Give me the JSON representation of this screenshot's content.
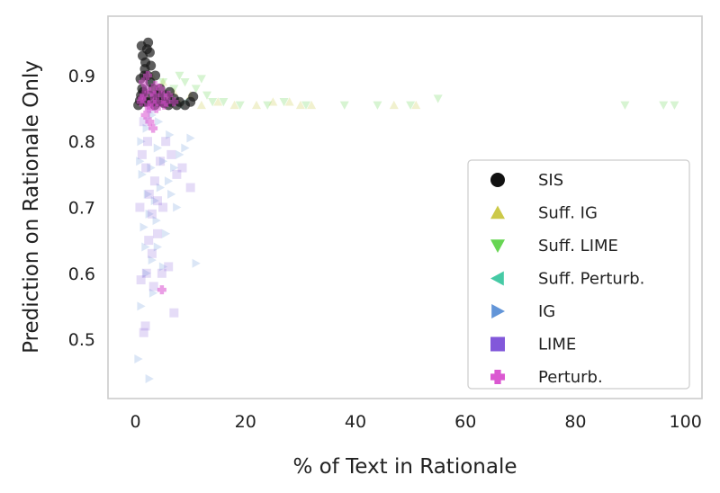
{
  "chart_data": {
    "type": "scatter",
    "xlabel": "% of Text in Rationale",
    "ylabel": "Prediction on Rationale Only",
    "xlim": [
      -5,
      103
    ],
    "ylim": [
      0.41,
      0.99
    ],
    "x_ticks": [
      0,
      20,
      40,
      60,
      80,
      100
    ],
    "y_ticks": [
      0.5,
      0.6,
      0.7,
      0.8,
      0.9
    ],
    "x_tick_labels": [
      "0",
      "20",
      "40",
      "60",
      "80",
      "100"
    ],
    "y_tick_labels": [
      "0.5",
      "0.6",
      "0.7",
      "0.8",
      "0.9"
    ],
    "grid": false,
    "legend_position": "lower-right",
    "series": [
      {
        "name": "SIS",
        "marker": "circle",
        "color": "#1a1a1a",
        "opacity": 0.7,
        "points": [
          [
            0.5,
            0.855
          ],
          [
            0.8,
            0.862
          ],
          [
            1.0,
            0.87
          ],
          [
            1.2,
            0.88
          ],
          [
            1.5,
            0.86
          ],
          [
            1.6,
            0.9
          ],
          [
            1.8,
            0.92
          ],
          [
            2.0,
            0.86
          ],
          [
            2.1,
            0.94
          ],
          [
            2.3,
            0.95
          ],
          [
            2.5,
            0.87
          ],
          [
            2.7,
            0.89
          ],
          [
            3.0,
            0.86
          ],
          [
            3.2,
            0.88
          ],
          [
            3.5,
            0.855
          ],
          [
            3.8,
            0.87
          ],
          [
            4.0,
            0.86
          ],
          [
            4.5,
            0.88
          ],
          [
            5.0,
            0.86
          ],
          [
            5.5,
            0.87
          ],
          [
            6.0,
            0.855
          ],
          [
            6.5,
            0.86
          ],
          [
            7.0,
            0.865
          ],
          [
            7.5,
            0.855
          ],
          [
            8.0,
            0.86
          ],
          [
            9.0,
            0.855
          ],
          [
            10.0,
            0.86
          ],
          [
            10.5,
            0.868
          ],
          [
            1.3,
            0.93
          ],
          [
            1.7,
            0.91
          ],
          [
            2.2,
            0.9
          ],
          [
            2.8,
            0.915
          ],
          [
            0.9,
            0.895
          ],
          [
            1.4,
            0.875
          ],
          [
            3.6,
            0.9
          ],
          [
            4.2,
            0.87
          ],
          [
            5.2,
            0.858
          ],
          [
            6.2,
            0.875
          ],
          [
            2.6,
            0.935
          ],
          [
            1.1,
            0.945
          ]
        ]
      },
      {
        "name": "Suff. IG",
        "marker": "triangle-up",
        "color": "#c9c63e",
        "opacity": 0.25,
        "points": [
          [
            2.0,
            0.87
          ],
          [
            4.0,
            0.88
          ],
          [
            6.0,
            0.87
          ],
          [
            8.0,
            0.86
          ],
          [
            10.0,
            0.87
          ],
          [
            12.0,
            0.855
          ],
          [
            15.0,
            0.86
          ],
          [
            18.0,
            0.855
          ],
          [
            22.0,
            0.855
          ],
          [
            25.0,
            0.86
          ],
          [
            28.0,
            0.86
          ],
          [
            30.0,
            0.855
          ],
          [
            32.0,
            0.855
          ],
          [
            47.0,
            0.855
          ],
          [
            51.0,
            0.855
          ],
          [
            3.0,
            0.9
          ],
          [
            5.0,
            0.89
          ],
          [
            7.0,
            0.875
          ]
        ]
      },
      {
        "name": "Suff. LIME",
        "marker": "triangle-down",
        "color": "#5fd34a",
        "opacity": 0.25,
        "points": [
          [
            3.0,
            0.88
          ],
          [
            5.0,
            0.89
          ],
          [
            7.0,
            0.88
          ],
          [
            9.0,
            0.89
          ],
          [
            11.0,
            0.88
          ],
          [
            13.0,
            0.87
          ],
          [
            14.0,
            0.86
          ],
          [
            16.0,
            0.86
          ],
          [
            19.0,
            0.855
          ],
          [
            24.0,
            0.855
          ],
          [
            27.0,
            0.86
          ],
          [
            31.0,
            0.855
          ],
          [
            38.0,
            0.855
          ],
          [
            44.0,
            0.855
          ],
          [
            50.0,
            0.855
          ],
          [
            55.0,
            0.865
          ],
          [
            89.0,
            0.855
          ],
          [
            96.0,
            0.855
          ],
          [
            98.0,
            0.855
          ],
          [
            12.0,
            0.895
          ],
          [
            8.0,
            0.9
          ]
        ]
      },
      {
        "name": "Suff. Perturb.",
        "marker": "triangle-left",
        "color": "#3cc7a0",
        "opacity": 0.25,
        "points": [
          [
            2.0,
            0.86
          ],
          [
            3.0,
            0.87
          ],
          [
            4.0,
            0.86
          ],
          [
            5.0,
            0.87
          ],
          [
            6.0,
            0.86
          ],
          [
            7.0,
            0.86
          ],
          [
            8.0,
            0.855
          ],
          [
            9.0,
            0.86
          ],
          [
            1.5,
            0.88
          ],
          [
            2.5,
            0.89
          ]
        ]
      },
      {
        "name": "IG",
        "marker": "triangle-right",
        "color": "#5a8fd6",
        "opacity": 0.22,
        "points": [
          [
            0.5,
            0.47
          ],
          [
            2.5,
            0.44
          ],
          [
            1.0,
            0.55
          ],
          [
            2.0,
            0.6
          ],
          [
            3.0,
            0.62
          ],
          [
            4.0,
            0.64
          ],
          [
            5.0,
            0.61
          ],
          [
            1.5,
            0.67
          ],
          [
            2.5,
            0.69
          ],
          [
            3.5,
            0.71
          ],
          [
            4.5,
            0.73
          ],
          [
            6.0,
            0.74
          ],
          [
            7.0,
            0.76
          ],
          [
            8.0,
            0.78
          ],
          [
            1.0,
            0.8
          ],
          [
            2.0,
            0.82
          ],
          [
            3.0,
            0.84
          ],
          [
            4.0,
            0.79
          ],
          [
            5.0,
            0.77
          ],
          [
            6.5,
            0.72
          ],
          [
            11.0,
            0.615
          ],
          [
            10.0,
            0.805
          ],
          [
            9.0,
            0.79
          ],
          [
            1.2,
            0.75
          ],
          [
            0.8,
            0.77
          ],
          [
            3.8,
            0.68
          ],
          [
            5.5,
            0.66
          ],
          [
            2.2,
            0.72
          ],
          [
            4.2,
            0.83
          ],
          [
            6.2,
            0.81
          ],
          [
            7.5,
            0.7
          ],
          [
            1.8,
            0.64
          ],
          [
            3.2,
            0.57
          ],
          [
            2.8,
            0.76
          ]
        ]
      },
      {
        "name": "LIME",
        "marker": "square",
        "color": "#7b4fd8",
        "opacity": 0.2,
        "points": [
          [
            1.5,
            0.51
          ],
          [
            1.8,
            0.52
          ],
          [
            1.0,
            0.59
          ],
          [
            2.0,
            0.6
          ],
          [
            3.0,
            0.63
          ],
          [
            4.0,
            0.66
          ],
          [
            5.0,
            0.7
          ],
          [
            2.5,
            0.72
          ],
          [
            3.5,
            0.74
          ],
          [
            4.5,
            0.77
          ],
          [
            1.2,
            0.78
          ],
          [
            2.2,
            0.8
          ],
          [
            6.0,
            0.61
          ],
          [
            7.0,
            0.54
          ],
          [
            7.5,
            0.75
          ],
          [
            8.5,
            0.76
          ],
          [
            10.0,
            0.73
          ],
          [
            3.0,
            0.69
          ],
          [
            4.0,
            0.71
          ],
          [
            1.5,
            0.83
          ],
          [
            2.8,
            0.85
          ],
          [
            5.5,
            0.8
          ],
          [
            6.5,
            0.78
          ],
          [
            3.3,
            0.58
          ],
          [
            2.4,
            0.65
          ],
          [
            4.8,
            0.6
          ],
          [
            0.8,
            0.7
          ],
          [
            1.9,
            0.76
          ]
        ]
      },
      {
        "name": "Perturb.",
        "marker": "plus",
        "color": "#d94fcf",
        "opacity": 0.55,
        "points": [
          [
            1.0,
            0.86
          ],
          [
            1.5,
            0.87
          ],
          [
            2.0,
            0.88
          ],
          [
            2.5,
            0.85
          ],
          [
            3.0,
            0.86
          ],
          [
            3.5,
            0.87
          ],
          [
            4.0,
            0.86
          ],
          [
            4.5,
            0.88
          ],
          [
            5.0,
            0.87
          ],
          [
            5.5,
            0.86
          ],
          [
            6.0,
            0.87
          ],
          [
            7.0,
            0.86
          ],
          [
            2.2,
            0.9
          ],
          [
            1.8,
            0.84
          ],
          [
            2.6,
            0.83
          ],
          [
            3.2,
            0.82
          ],
          [
            1.4,
            0.89
          ],
          [
            4.8,
            0.575
          ],
          [
            3.8,
            0.85
          ],
          [
            2.9,
            0.875
          ],
          [
            1.2,
            0.865
          ],
          [
            2.4,
            0.855
          ],
          [
            3.6,
            0.885
          ],
          [
            5.2,
            0.855
          ]
        ]
      }
    ]
  }
}
